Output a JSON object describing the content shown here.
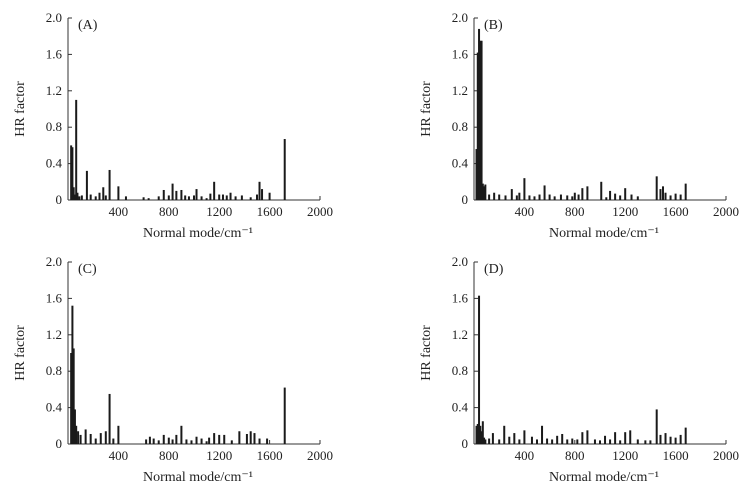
{
  "figure": {
    "background": "#ffffff",
    "bar_color": "#1a1a1a",
    "axis_color": "#333333"
  },
  "chart_data": [
    {
      "type": "bar",
      "panel_label": "(A)",
      "xlabel": "Normal mode/cm⁻¹",
      "ylabel": "HR factor",
      "xlim": [
        0,
        2000
      ],
      "ylim": [
        0,
        2.0
      ],
      "xticks": [
        0,
        400,
        800,
        1200,
        1600,
        2000
      ],
      "yticks": [
        0,
        0.4,
        0.8,
        1.2,
        1.6,
        2.0
      ],
      "xtick_labels": [
        "0",
        "400",
        "800",
        "1200",
        "1600",
        "2000"
      ],
      "ytick_labels": [
        "0",
        "0.4",
        "0.8",
        "1.2",
        "1.6",
        "2.0"
      ],
      "x": [
        25,
        35,
        45,
        55,
        65,
        75,
        90,
        110,
        150,
        180,
        220,
        250,
        280,
        300,
        330,
        400,
        460,
        600,
        640,
        720,
        760,
        800,
        830,
        860,
        900,
        930,
        960,
        1000,
        1020,
        1060,
        1100,
        1130,
        1160,
        1200,
        1230,
        1260,
        1290,
        1330,
        1380,
        1450,
        1500,
        1520,
        1540,
        1600,
        1720
      ],
      "y": [
        0.6,
        0.58,
        0.14,
        0.06,
        1.1,
        0.08,
        0.04,
        0.05,
        0.32,
        0.06,
        0.04,
        0.08,
        0.14,
        0.05,
        0.33,
        0.15,
        0.04,
        0.03,
        0.02,
        0.04,
        0.11,
        0.05,
        0.18,
        0.1,
        0.11,
        0.05,
        0.04,
        0.05,
        0.12,
        0.04,
        0.02,
        0.07,
        0.2,
        0.06,
        0.06,
        0.05,
        0.08,
        0.04,
        0.05,
        0.03,
        0.06,
        0.2,
        0.12,
        0.08,
        0.67
      ]
    },
    {
      "type": "bar",
      "panel_label": "(B)",
      "xlabel": "Normal mode/cm⁻¹",
      "ylabel": "HR factor",
      "xlim": [
        0,
        2000
      ],
      "ylim": [
        0,
        2.0
      ],
      "xticks": [
        0,
        400,
        800,
        1200,
        1600,
        2000
      ],
      "yticks": [
        0,
        0.4,
        0.8,
        1.2,
        1.6,
        2.0
      ],
      "xtick_labels": [
        "0",
        "400",
        "800",
        "1200",
        "1600",
        "2000"
      ],
      "ytick_labels": [
        "0",
        "0.4",
        "0.8",
        "1.2",
        "1.6",
        "2.0"
      ],
      "x": [
        20,
        30,
        40,
        50,
        60,
        70,
        80,
        90,
        120,
        160,
        200,
        250,
        300,
        340,
        360,
        400,
        440,
        480,
        520,
        560,
        600,
        640,
        690,
        740,
        780,
        800,
        830,
        860,
        900,
        1010,
        1050,
        1080,
        1120,
        1160,
        1200,
        1250,
        1300,
        1450,
        1480,
        1500,
        1520,
        1560,
        1600,
        1640,
        1680
      ],
      "y": [
        0.56,
        1.62,
        1.88,
        1.75,
        1.75,
        0.18,
        0.15,
        0.17,
        0.06,
        0.08,
        0.06,
        0.05,
        0.12,
        0.05,
        0.08,
        0.24,
        0.05,
        0.04,
        0.06,
        0.16,
        0.06,
        0.04,
        0.06,
        0.05,
        0.04,
        0.08,
        0.06,
        0.13,
        0.15,
        0.2,
        0.03,
        0.1,
        0.07,
        0.05,
        0.13,
        0.06,
        0.04,
        0.26,
        0.12,
        0.15,
        0.08,
        0.05,
        0.07,
        0.06,
        0.18
      ]
    },
    {
      "type": "bar",
      "panel_label": "(C)",
      "xlabel": "Normal mode/cm⁻¹",
      "ylabel": "HR factor",
      "xlim": [
        0,
        2000
      ],
      "ylim": [
        0,
        2.0
      ],
      "xticks": [
        0,
        400,
        800,
        1200,
        1600,
        2000
      ],
      "yticks": [
        0,
        0.4,
        0.8,
        1.2,
        1.6,
        2.0
      ],
      "xtick_labels": [
        "0",
        "400",
        "800",
        "1200",
        "1600",
        "2000"
      ],
      "ytick_labels": [
        "0",
        "0.4",
        "0.8",
        "1.2",
        "1.6",
        "2.0"
      ],
      "x": [
        25,
        35,
        45,
        55,
        65,
        80,
        100,
        140,
        180,
        220,
        260,
        300,
        330,
        360,
        400,
        620,
        650,
        680,
        720,
        760,
        800,
        830,
        860,
        900,
        940,
        980,
        1020,
        1060,
        1100,
        1120,
        1160,
        1200,
        1240,
        1300,
        1360,
        1420,
        1450,
        1480,
        1520,
        1580,
        1720
      ],
      "y": [
        1.0,
        1.52,
        1.05,
        0.38,
        0.2,
        0.14,
        0.1,
        0.16,
        0.11,
        0.06,
        0.12,
        0.14,
        0.55,
        0.06,
        0.2,
        0.05,
        0.08,
        0.06,
        0.04,
        0.1,
        0.07,
        0.05,
        0.1,
        0.2,
        0.05,
        0.04,
        0.08,
        0.06,
        0.03,
        0.07,
        0.12,
        0.1,
        0.1,
        0.04,
        0.14,
        0.11,
        0.14,
        0.12,
        0.06,
        0.06,
        0.62
      ]
    },
    {
      "type": "bar",
      "panel_label": "(D)",
      "xlabel": "Normal mode/cm⁻¹",
      "ylabel": "HR factor",
      "xlim": [
        0,
        2000
      ],
      "ylim": [
        0,
        2.0
      ],
      "xticks": [
        0,
        400,
        800,
        1200,
        1600,
        2000
      ],
      "yticks": [
        0,
        0.4,
        0.8,
        1.2,
        1.6,
        2.0
      ],
      "xtick_labels": [
        "0",
        "400",
        "800",
        "1200",
        "1600",
        "2000"
      ],
      "ytick_labels": [
        "0",
        "0.4",
        "0.8",
        "1.2",
        "1.6",
        "2.0"
      ],
      "x": [
        20,
        30,
        40,
        50,
        60,
        70,
        80,
        90,
        120,
        150,
        200,
        240,
        280,
        320,
        360,
        400,
        460,
        500,
        540,
        580,
        620,
        660,
        700,
        740,
        780,
        820,
        860,
        900,
        960,
        1000,
        1040,
        1080,
        1120,
        1160,
        1200,
        1240,
        1300,
        1360,
        1400,
        1450,
        1480,
        1520,
        1560,
        1600,
        1640,
        1680
      ],
      "y": [
        0.2,
        0.22,
        1.63,
        0.2,
        0.14,
        0.25,
        0.07,
        0.05,
        0.06,
        0.12,
        0.05,
        0.2,
        0.08,
        0.12,
        0.05,
        0.15,
        0.08,
        0.05,
        0.2,
        0.06,
        0.05,
        0.09,
        0.11,
        0.05,
        0.06,
        0.05,
        0.13,
        0.15,
        0.05,
        0.04,
        0.09,
        0.05,
        0.13,
        0.04,
        0.13,
        0.15,
        0.05,
        0.04,
        0.04,
        0.38,
        0.1,
        0.12,
        0.08,
        0.07,
        0.1,
        0.18
      ]
    }
  ]
}
